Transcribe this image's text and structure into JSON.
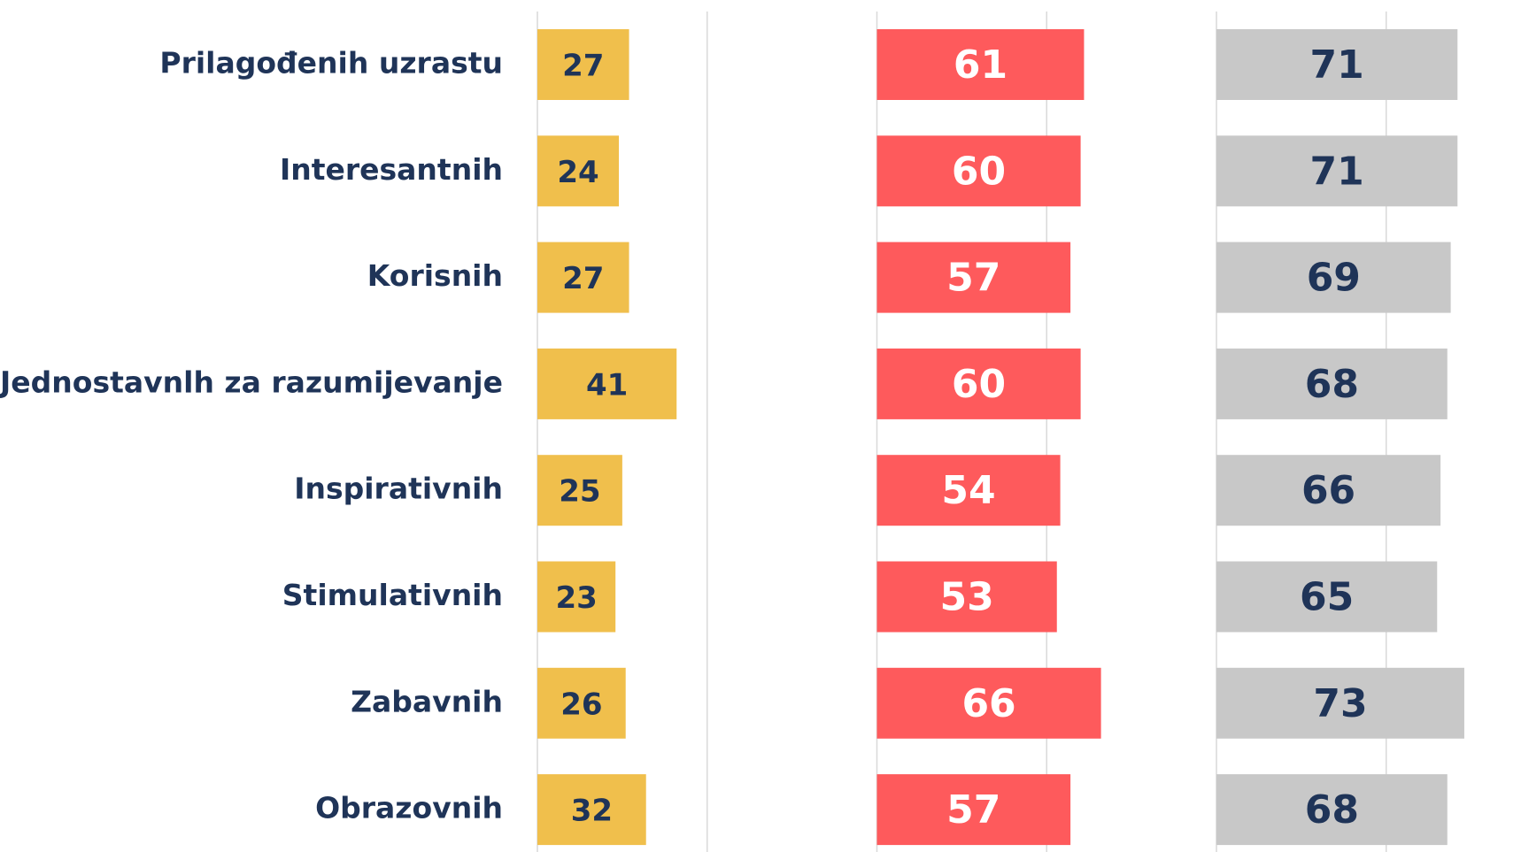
{
  "chart_data": {
    "type": "bar",
    "orientation": "horizontal",
    "layout": "panels",
    "categories": [
      "Prilagođenih uzrastu",
      "Interesantnih",
      "Korisnih",
      "Jednostavnlh za razumijevanje",
      "Inspirativnih",
      "Stimulativnih",
      "Zabavnih",
      "Obrazovnih"
    ],
    "series": [
      {
        "color": "#f0bf4c",
        "label_color": "#1f3458",
        "values": [
          27,
          24,
          27,
          41,
          25,
          23,
          26,
          32
        ]
      },
      {
        "color": "#fe5a5c",
        "label_color": "#ffffff",
        "values": [
          61,
          60,
          57,
          60,
          54,
          53,
          66,
          57
        ]
      },
      {
        "color": "#c8c8c8",
        "label_color": "#1f3458",
        "values": [
          71,
          71,
          69,
          68,
          66,
          65,
          73,
          68
        ]
      }
    ],
    "xlim": [
      0,
      100
    ],
    "xticks": [
      0,
      50
    ],
    "grid": true,
    "grid_color": "#d9d9d9"
  }
}
